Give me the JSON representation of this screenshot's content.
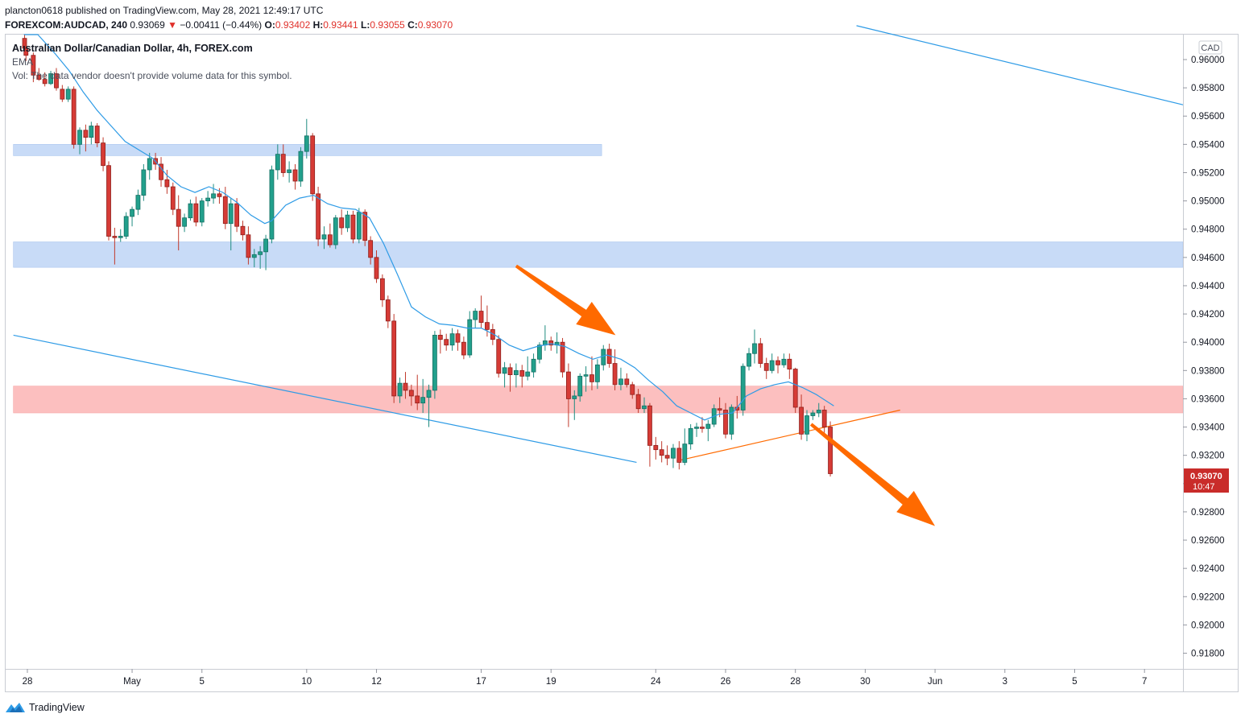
{
  "header": {
    "publish_line": "plancton0618 published on TradingView.com, May 28, 2021 12:49:17 UTC",
    "symbol_interval": "FOREXCOM:AUDCAD, 240",
    "last_price": "0.93069",
    "down_arrow": "▼",
    "change": "−0.00411 (−0.44%)",
    "o_label": "O:",
    "o_value": "0.93402",
    "h_label": "H:",
    "h_value": "0.93441",
    "l_label": "L:",
    "l_value": "0.93055",
    "c_label": "C:",
    "c_value": "0.93070"
  },
  "legend": {
    "symbol_title": "Australian Dollar/Canadian Dollar, 4h, FOREX.com",
    "ema_label": "EMA",
    "volume_note": "Vol: The data vendor doesn't provide volume data for this symbol."
  },
  "price_axis": {
    "currency": "CAD",
    "current_price_label": "0.93070",
    "countdown_label": "10:47"
  },
  "footer": {
    "brand": "TradingView"
  },
  "colors": {
    "up": "#26a69a",
    "down": "#ef5350",
    "ema": "#2e9be6",
    "trendline": "#2e9be6",
    "orange": "#ff6a00",
    "support_blue": "#c8dbf7",
    "resistance_red": "#fcbfbf"
  },
  "chart_data": {
    "type": "candlestick",
    "symbol": "FOREXCOM:AUDCAD",
    "interval": "4h",
    "y_range": [
      0.917,
      0.962
    ],
    "y_ticks": [
      "0.96000",
      "0.95800",
      "0.95600",
      "0.95400",
      "0.95200",
      "0.95000",
      "0.94800",
      "0.94600",
      "0.94400",
      "0.94200",
      "0.94000",
      "0.93800",
      "0.93600",
      "0.93400",
      "0.93200",
      "0.93000",
      "0.92800",
      "0.92600",
      "0.92400",
      "0.92200",
      "0.92000",
      "0.91800"
    ],
    "x_ticks": [
      {
        "label": "28",
        "t": 0
      },
      {
        "label": "May",
        "t": 3
      },
      {
        "label": "5",
        "t": 5
      },
      {
        "label": "10",
        "t": 8
      },
      {
        "label": "12",
        "t": 10
      },
      {
        "label": "17",
        "t": 13
      },
      {
        "label": "19",
        "t": 15
      },
      {
        "label": "24",
        "t": 18
      },
      {
        "label": "26",
        "t": 20
      },
      {
        "label": "28",
        "t": 22
      },
      {
        "label": "30",
        "t": 24
      },
      {
        "label": "Jun",
        "t": 26
      },
      {
        "label": "3",
        "t": 28
      },
      {
        "label": "5",
        "t": 30
      },
      {
        "label": "7",
        "t": 32
      }
    ],
    "candles": [
      [
        -0.08,
        0.9615,
        0.9621,
        0.9606,
        0.9608
      ],
      [
        -0.04,
        0.9608,
        0.9612,
        0.9599,
        0.9603
      ],
      [
        0.17,
        0.9603,
        0.9605,
        0.9584,
        0.9589
      ],
      [
        0.33,
        0.9589,
        0.9594,
        0.9585,
        0.9586
      ],
      [
        0.5,
        0.9586,
        0.9591,
        0.9581,
        0.9583
      ],
      [
        0.67,
        0.9583,
        0.9592,
        0.9582,
        0.959
      ],
      [
        0.83,
        0.959,
        0.9594,
        0.9578,
        0.958
      ],
      [
        1.0,
        0.9579,
        0.9582,
        0.957,
        0.9572
      ],
      [
        1.17,
        0.9572,
        0.9581,
        0.957,
        0.9579
      ],
      [
        1.33,
        0.9579,
        0.9581,
        0.9537,
        0.954
      ],
      [
        1.5,
        0.954,
        0.9552,
        0.9533,
        0.955
      ],
      [
        1.67,
        0.955,
        0.9554,
        0.9535,
        0.9545
      ],
      [
        1.83,
        0.9545,
        0.9556,
        0.954,
        0.9553
      ],
      [
        2.0,
        0.9553,
        0.9555,
        0.9538,
        0.9541
      ],
      [
        2.17,
        0.9541,
        0.9545,
        0.9521,
        0.9525
      ],
      [
        2.33,
        0.9525,
        0.9528,
        0.9472,
        0.9475
      ],
      [
        2.5,
        0.9475,
        0.9481,
        0.9455,
        0.9474
      ],
      [
        2.67,
        0.9474,
        0.948,
        0.9471,
        0.9475
      ],
      [
        2.83,
        0.9475,
        0.9492,
        0.9473,
        0.9489
      ],
      [
        3.0,
        0.9489,
        0.9496,
        0.9482,
        0.9494
      ],
      [
        3.17,
        0.9494,
        0.9508,
        0.949,
        0.9504
      ],
      [
        3.33,
        0.9504,
        0.9526,
        0.95,
        0.9522
      ],
      [
        3.5,
        0.9522,
        0.9534,
        0.9515,
        0.953
      ],
      [
        3.67,
        0.953,
        0.9534,
        0.9522,
        0.9526
      ],
      [
        3.83,
        0.9526,
        0.9531,
        0.951,
        0.9515
      ],
      [
        4.0,
        0.9515,
        0.9522,
        0.9505,
        0.951
      ],
      [
        4.17,
        0.951,
        0.9513,
        0.949,
        0.9494
      ],
      [
        4.33,
        0.9494,
        0.9504,
        0.9465,
        0.9482
      ],
      [
        4.5,
        0.9482,
        0.9491,
        0.9478,
        0.9488
      ],
      [
        4.67,
        0.9488,
        0.9501,
        0.9486,
        0.9498
      ],
      [
        4.83,
        0.9498,
        0.9503,
        0.9482,
        0.9485
      ],
      [
        5.0,
        0.9485,
        0.9502,
        0.9482,
        0.95
      ],
      [
        5.17,
        0.95,
        0.9507,
        0.9496,
        0.9502
      ],
      [
        5.33,
        0.9502,
        0.9512,
        0.9498,
        0.9505
      ],
      [
        5.5,
        0.9505,
        0.9509,
        0.9498,
        0.9503
      ],
      [
        5.67,
        0.9503,
        0.951,
        0.948,
        0.9484
      ],
      [
        5.83,
        0.9484,
        0.9502,
        0.9465,
        0.9498
      ],
      [
        6.0,
        0.9498,
        0.9502,
        0.9478,
        0.9482
      ],
      [
        6.17,
        0.9482,
        0.9486,
        0.9472,
        0.9476
      ],
      [
        6.33,
        0.9476,
        0.9482,
        0.9455,
        0.946
      ],
      [
        6.5,
        0.946,
        0.9466,
        0.9453,
        0.9462
      ],
      [
        6.67,
        0.9462,
        0.9468,
        0.9452,
        0.9464
      ],
      [
        6.83,
        0.9464,
        0.9476,
        0.9451,
        0.9473
      ],
      [
        7.0,
        0.9473,
        0.9525,
        0.947,
        0.9522
      ],
      [
        7.17,
        0.9522,
        0.954,
        0.9515,
        0.9533
      ],
      [
        7.33,
        0.9533,
        0.954,
        0.9517,
        0.952
      ],
      [
        7.5,
        0.952,
        0.9528,
        0.9513,
        0.9522
      ],
      [
        7.67,
        0.9522,
        0.9526,
        0.9508,
        0.9514
      ],
      [
        7.83,
        0.9514,
        0.9538,
        0.951,
        0.9535
      ],
      [
        8.0,
        0.9535,
        0.9558,
        0.953,
        0.9546
      ],
      [
        8.17,
        0.9546,
        0.9548,
        0.95,
        0.9505
      ],
      [
        8.33,
        0.9505,
        0.951,
        0.9468,
        0.9473
      ],
      [
        8.5,
        0.9473,
        0.9482,
        0.9466,
        0.9476
      ],
      [
        8.67,
        0.9476,
        0.9484,
        0.9467,
        0.9469
      ],
      [
        8.83,
        0.9469,
        0.949,
        0.9466,
        0.9488
      ],
      [
        9.0,
        0.9488,
        0.9494,
        0.9476,
        0.9481
      ],
      [
        9.17,
        0.9481,
        0.9493,
        0.9478,
        0.949
      ],
      [
        9.33,
        0.949,
        0.9493,
        0.947,
        0.9473
      ],
      [
        9.5,
        0.9473,
        0.9495,
        0.947,
        0.9492
      ],
      [
        9.67,
        0.9492,
        0.9494,
        0.9468,
        0.9472
      ],
      [
        9.83,
        0.9472,
        0.9475,
        0.9455,
        0.946
      ],
      [
        10.0,
        0.946,
        0.9465,
        0.9442,
        0.9445
      ],
      [
        10.17,
        0.9445,
        0.9448,
        0.9425,
        0.943
      ],
      [
        10.33,
        0.943,
        0.9433,
        0.941,
        0.9415
      ],
      [
        10.5,
        0.9415,
        0.942,
        0.9357,
        0.9362
      ],
      [
        10.67,
        0.9362,
        0.9375,
        0.9357,
        0.9371
      ],
      [
        10.83,
        0.9371,
        0.9379,
        0.936,
        0.9366
      ],
      [
        11.0,
        0.9366,
        0.937,
        0.9355,
        0.9362
      ],
      [
        11.17,
        0.9362,
        0.9377,
        0.9352,
        0.9357
      ],
      [
        11.33,
        0.9357,
        0.9374,
        0.935,
        0.9361
      ],
      [
        11.5,
        0.9361,
        0.937,
        0.934,
        0.9366
      ],
      [
        11.67,
        0.9366,
        0.9408,
        0.936,
        0.9405
      ],
      [
        11.83,
        0.9405,
        0.9409,
        0.9392,
        0.9402
      ],
      [
        12.0,
        0.9402,
        0.9406,
        0.9394,
        0.9398
      ],
      [
        12.17,
        0.9398,
        0.941,
        0.9394,
        0.9406
      ],
      [
        12.33,
        0.9406,
        0.9409,
        0.9394,
        0.94
      ],
      [
        12.5,
        0.94,
        0.9404,
        0.9388,
        0.9391
      ],
      [
        12.67,
        0.9391,
        0.9422,
        0.9389,
        0.9416
      ],
      [
        12.83,
        0.9416,
        0.9424,
        0.941,
        0.9422
      ],
      [
        13.0,
        0.9422,
        0.9433,
        0.941,
        0.9414
      ],
      [
        13.17,
        0.9414,
        0.9426,
        0.9404,
        0.9409
      ],
      [
        13.33,
        0.9409,
        0.9413,
        0.9398,
        0.9402
      ],
      [
        13.5,
        0.9402,
        0.9405,
        0.9375,
        0.9378
      ],
      [
        13.67,
        0.9378,
        0.9386,
        0.9368,
        0.9382
      ],
      [
        13.83,
        0.9382,
        0.9385,
        0.9365,
        0.9377
      ],
      [
        14.0,
        0.9377,
        0.9385,
        0.9368,
        0.938
      ],
      [
        14.17,
        0.938,
        0.9384,
        0.9368,
        0.9376
      ],
      [
        14.33,
        0.9376,
        0.939,
        0.9373,
        0.9379
      ],
      [
        14.5,
        0.9379,
        0.9392,
        0.9375,
        0.9388
      ],
      [
        14.67,
        0.9388,
        0.94,
        0.9385,
        0.9398
      ],
      [
        14.83,
        0.9398,
        0.9412,
        0.9394,
        0.9401
      ],
      [
        15.0,
        0.9401,
        0.9404,
        0.9394,
        0.9398
      ],
      [
        15.17,
        0.9398,
        0.9407,
        0.9392,
        0.94
      ],
      [
        15.33,
        0.94,
        0.9403,
        0.9375,
        0.9379
      ],
      [
        15.5,
        0.9379,
        0.9385,
        0.934,
        0.936
      ],
      [
        15.67,
        0.936,
        0.9366,
        0.9345,
        0.9362
      ],
      [
        15.83,
        0.9362,
        0.9378,
        0.9358,
        0.9376
      ],
      [
        16.0,
        0.9376,
        0.9383,
        0.9365,
        0.9377
      ],
      [
        16.17,
        0.9377,
        0.939,
        0.9366,
        0.9372
      ],
      [
        16.33,
        0.9372,
        0.9388,
        0.9367,
        0.9384
      ],
      [
        16.5,
        0.9384,
        0.9398,
        0.938,
        0.9395
      ],
      [
        16.67,
        0.9395,
        0.9399,
        0.9382,
        0.9385
      ],
      [
        16.83,
        0.9385,
        0.9395,
        0.9366,
        0.937
      ],
      [
        17.0,
        0.937,
        0.9382,
        0.9366,
        0.9374
      ],
      [
        17.17,
        0.9374,
        0.9378,
        0.9368,
        0.937
      ],
      [
        17.33,
        0.937,
        0.9372,
        0.936,
        0.9363
      ],
      [
        17.5,
        0.9363,
        0.9367,
        0.935,
        0.9353
      ],
      [
        17.67,
        0.9353,
        0.9361,
        0.935,
        0.9355
      ],
      [
        17.83,
        0.9355,
        0.9357,
        0.9312,
        0.9327
      ],
      [
        18.0,
        0.9327,
        0.9333,
        0.9317,
        0.9324
      ],
      [
        18.17,
        0.9324,
        0.933,
        0.9315,
        0.932
      ],
      [
        18.33,
        0.932,
        0.9327,
        0.9313,
        0.9318
      ],
      [
        18.5,
        0.9318,
        0.9328,
        0.9311,
        0.9325
      ],
      [
        18.67,
        0.9325,
        0.933,
        0.931,
        0.9315
      ],
      [
        18.83,
        0.9315,
        0.9339,
        0.9313,
        0.9328
      ],
      [
        19.0,
        0.9328,
        0.9342,
        0.9324,
        0.9339
      ],
      [
        19.17,
        0.9339,
        0.9343,
        0.9333,
        0.934
      ],
      [
        19.33,
        0.934,
        0.9347,
        0.9336,
        0.9339
      ],
      [
        19.5,
        0.9339,
        0.9345,
        0.933,
        0.9342
      ],
      [
        19.67,
        0.9342,
        0.9356,
        0.934,
        0.9353
      ],
      [
        19.83,
        0.9353,
        0.9361,
        0.9347,
        0.9352
      ],
      [
        20.0,
        0.9352,
        0.9357,
        0.9332,
        0.9335
      ],
      [
        20.17,
        0.9335,
        0.9356,
        0.9331,
        0.9354
      ],
      [
        20.33,
        0.9354,
        0.9362,
        0.9346,
        0.9352
      ],
      [
        20.5,
        0.9352,
        0.9385,
        0.9348,
        0.9383
      ],
      [
        20.67,
        0.9383,
        0.9396,
        0.938,
        0.9392
      ],
      [
        20.83,
        0.9392,
        0.9409,
        0.9385,
        0.9399
      ],
      [
        21.0,
        0.9399,
        0.9403,
        0.9382,
        0.9385
      ],
      [
        21.17,
        0.9385,
        0.9389,
        0.9374,
        0.938
      ],
      [
        21.33,
        0.938,
        0.9392,
        0.9378,
        0.9387
      ],
      [
        21.5,
        0.9387,
        0.939,
        0.9378,
        0.9384
      ],
      [
        21.67,
        0.9384,
        0.9392,
        0.9382,
        0.9388
      ],
      [
        21.83,
        0.9388,
        0.9392,
        0.9374,
        0.9381
      ],
      [
        22.0,
        0.9381,
        0.9382,
        0.935,
        0.9354
      ],
      [
        22.17,
        0.9354,
        0.9363,
        0.9331,
        0.9335
      ],
      [
        22.33,
        0.9335,
        0.9352,
        0.933,
        0.9348
      ],
      [
        22.5,
        0.9348,
        0.9352,
        0.9345,
        0.935
      ],
      [
        22.67,
        0.935,
        0.9357,
        0.9347,
        0.9352
      ],
      [
        22.83,
        0.9352,
        0.9355,
        0.9336,
        0.934
      ],
      [
        23.0,
        0.934,
        0.9344,
        0.9305,
        0.9307
      ]
    ],
    "ema": [
      [
        -0.1,
        0.9628
      ],
      [
        0.3,
        0.962
      ],
      [
        0.8,
        0.9604
      ],
      [
        1.2,
        0.9592
      ],
      [
        1.6,
        0.9577
      ],
      [
        2.0,
        0.9564
      ],
      [
        2.4,
        0.9553
      ],
      [
        2.8,
        0.9542
      ],
      [
        3.2,
        0.9536
      ],
      [
        3.6,
        0.953
      ],
      [
        4.0,
        0.9518
      ],
      [
        4.4,
        0.951
      ],
      [
        4.8,
        0.9506
      ],
      [
        5.2,
        0.951
      ],
      [
        5.6,
        0.9506
      ],
      [
        6.0,
        0.9499
      ],
      [
        6.4,
        0.949
      ],
      [
        6.8,
        0.9484
      ],
      [
        7.0,
        0.9486
      ],
      [
        7.4,
        0.9497
      ],
      [
        7.8,
        0.9502
      ],
      [
        8.2,
        0.9504
      ],
      [
        8.6,
        0.9498
      ],
      [
        9.0,
        0.9495
      ],
      [
        9.4,
        0.9494
      ],
      [
        9.8,
        0.9488
      ],
      [
        10.2,
        0.947
      ],
      [
        10.6,
        0.9448
      ],
      [
        11.0,
        0.9425
      ],
      [
        11.4,
        0.9418
      ],
      [
        11.8,
        0.9413
      ],
      [
        12.2,
        0.9412
      ],
      [
        12.6,
        0.941
      ],
      [
        13.0,
        0.941
      ],
      [
        13.4,
        0.9405
      ],
      [
        13.8,
        0.9398
      ],
      [
        14.2,
        0.9394
      ],
      [
        14.6,
        0.9397
      ],
      [
        15.0,
        0.9399
      ],
      [
        15.4,
        0.9397
      ],
      [
        15.8,
        0.9392
      ],
      [
        16.2,
        0.9388
      ],
      [
        16.6,
        0.9391
      ],
      [
        17.0,
        0.9388
      ],
      [
        17.4,
        0.9382
      ],
      [
        17.8,
        0.9373
      ],
      [
        18.2,
        0.9365
      ],
      [
        18.6,
        0.9355
      ],
      [
        19.0,
        0.935
      ],
      [
        19.4,
        0.9345
      ],
      [
        19.8,
        0.9349
      ],
      [
        20.2,
        0.935
      ],
      [
        20.6,
        0.9362
      ],
      [
        21.0,
        0.9367
      ],
      [
        21.4,
        0.937
      ],
      [
        21.8,
        0.9372
      ],
      [
        22.2,
        0.9368
      ],
      [
        22.6,
        0.9363
      ],
      [
        23.1,
        0.9355
      ]
    ],
    "zones": [
      {
        "name": "upper-blue-zone",
        "from": 0.9532,
        "to": 0.954,
        "t_start": -0.4,
        "t_end": 16.45,
        "kind": "blue"
      },
      {
        "name": "lower-blue-zone",
        "from": 0.9453,
        "to": 0.9471,
        "t_start": -0.4,
        "t_end": 33.5,
        "kind": "blue"
      },
      {
        "name": "red-zone",
        "from": 0.935,
        "to": 0.9369,
        "t_start": -0.4,
        "t_end": 33.5,
        "kind": "red"
      }
    ],
    "trendlines": [
      {
        "name": "upper-trendline",
        "t1": 23.75,
        "p1": 0.9624,
        "t2": 33.5,
        "p2": 0.9568,
        "color": "trendline"
      },
      {
        "name": "lower-trendline",
        "t1": -0.4,
        "p1": 0.9405,
        "t2": 17.45,
        "p2": 0.9315,
        "color": "trendline"
      },
      {
        "name": "orange-rising-line",
        "t1": 18.6,
        "p1": 0.9316,
        "t2": 25.0,
        "p2": 0.9352,
        "color": "orange"
      }
    ],
    "arrows": [
      {
        "name": "orange-arrow-down-right-1",
        "t1": 14.0,
        "p1": 0.9454,
        "t2": 16.85,
        "p2": 0.9405
      },
      {
        "name": "orange-arrow-down-right-2",
        "t1": 22.45,
        "p1": 0.9342,
        "t2": 26.0,
        "p2": 0.927
      }
    ],
    "current_price": 0.9307
  }
}
